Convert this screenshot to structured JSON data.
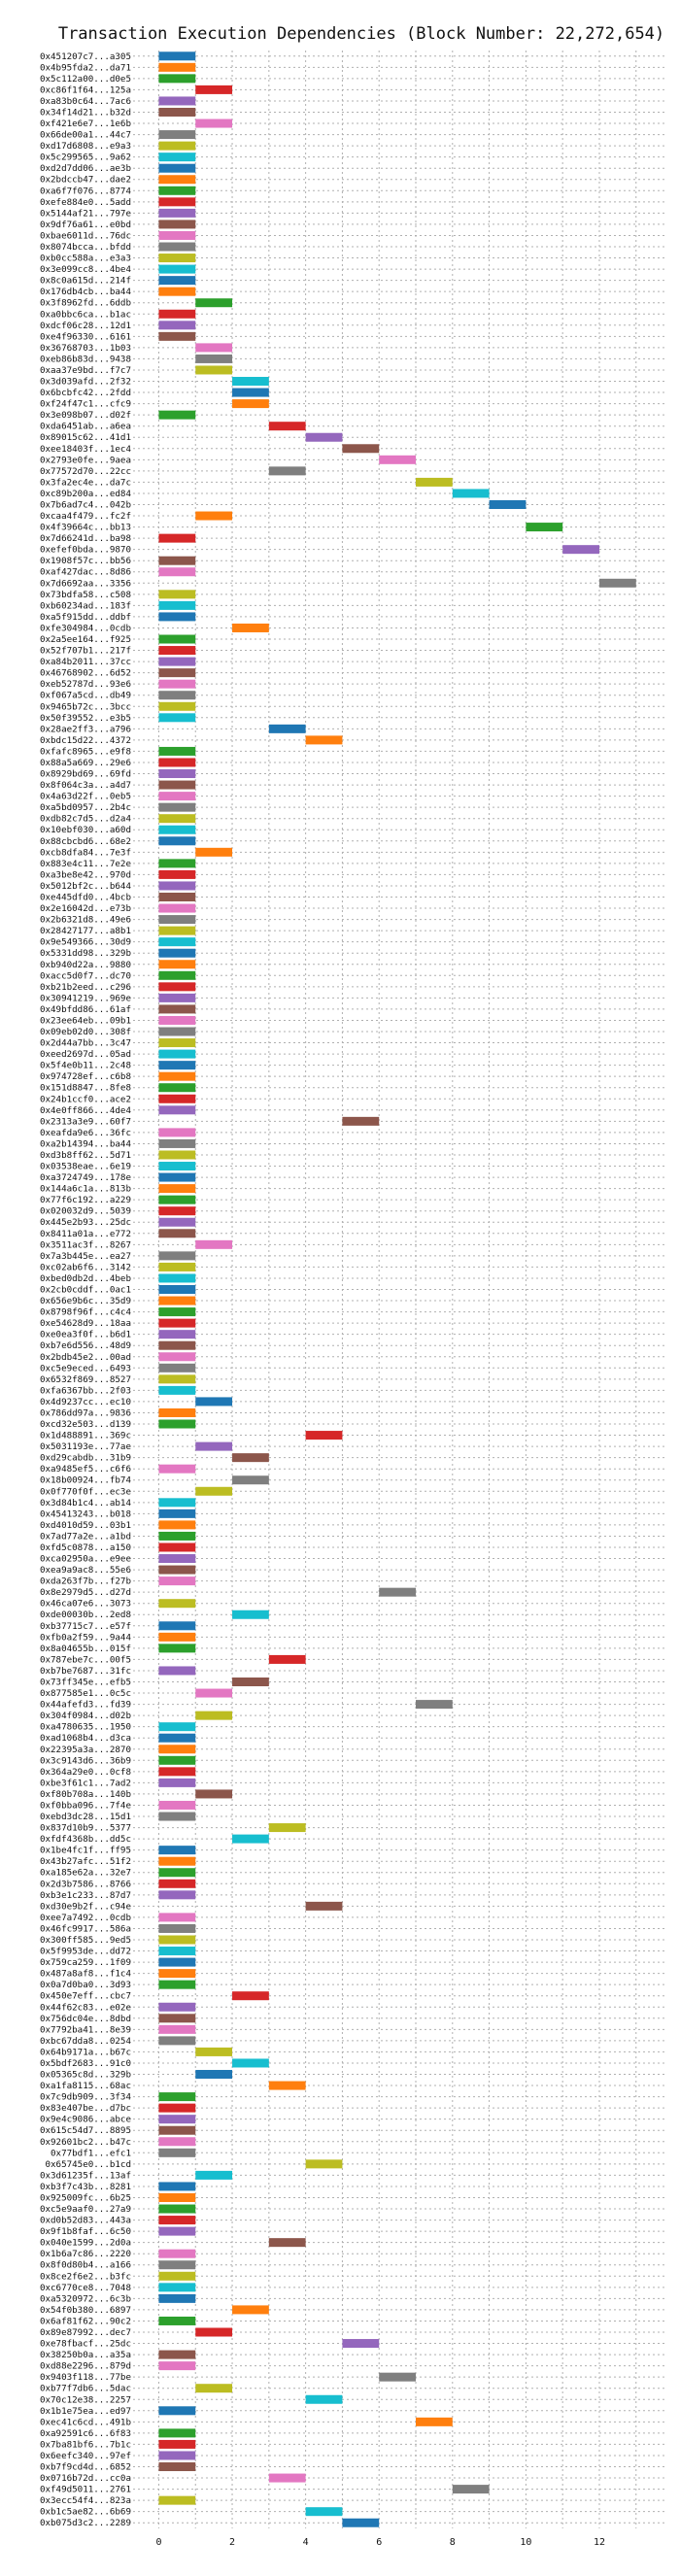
{
  "chart_data": {
    "type": "bar",
    "orientation": "horizontal",
    "title": "Transaction Execution Dependencies (Block Number: 22,272,654)",
    "xlabel": "",
    "ylabel": "",
    "xlim": [
      -0.7,
      13.8
    ],
    "xticks": [
      0,
      2,
      4,
      6,
      8,
      10,
      12
    ],
    "grid": true,
    "bar_span": 1,
    "palette": [
      "#1f77b4",
      "#ff7f0e",
      "#2ca02c",
      "#d62728",
      "#9467bd",
      "#8c564b",
      "#e377c2",
      "#7f7f7f",
      "#bcbd22",
      "#17becf"
    ],
    "transactions": [
      {
        "label": "0x451207c7...a305",
        "start": 0
      },
      {
        "label": "0x4b95fda2...da71",
        "start": 0
      },
      {
        "label": "0x5c112a00...d0e5",
        "start": 0
      },
      {
        "label": "0xc86f1f64...125a",
        "start": 1
      },
      {
        "label": "0xa83b0c64...7ac6",
        "start": 0
      },
      {
        "label": "0x34f14d21...b32d",
        "start": 0
      },
      {
        "label": "0xf421e6e7...1e6b",
        "start": 1
      },
      {
        "label": "0x66de00a1...44c7",
        "start": 0
      },
      {
        "label": "0xd17d6808...e9a3",
        "start": 0
      },
      {
        "label": "0x5c299565...9a62",
        "start": 0
      },
      {
        "label": "0xd2d7dd06...ae3b",
        "start": 0
      },
      {
        "label": "0x2bdccb47...dae2",
        "start": 0
      },
      {
        "label": "0xa6f7f076...8774",
        "start": 0
      },
      {
        "label": "0xefe884e0...5add",
        "start": 0
      },
      {
        "label": "0x5144af21...797e",
        "start": 0
      },
      {
        "label": "0x9df76a61...e0bd",
        "start": 0
      },
      {
        "label": "0xbae6011d...76dc",
        "start": 0
      },
      {
        "label": "0x8074bcca...bfdd",
        "start": 0
      },
      {
        "label": "0xb0cc588a...e3a3",
        "start": 0
      },
      {
        "label": "0x3e099cc8...4be4",
        "start": 0
      },
      {
        "label": "0x8c0a615d...214f",
        "start": 0
      },
      {
        "label": "0x176db4cb...ba44",
        "start": 0
      },
      {
        "label": "0x3f8962fd...6ddb",
        "start": 1
      },
      {
        "label": "0xa0bbc6ca...b1ac",
        "start": 0
      },
      {
        "label": "0xdcf06c28...12d1",
        "start": 0
      },
      {
        "label": "0xe4f96330...6161",
        "start": 0
      },
      {
        "label": "0x36768703...1b03",
        "start": 1
      },
      {
        "label": "0xeb86b83d...9438",
        "start": 1
      },
      {
        "label": "0xaa37e9bd...f7c7",
        "start": 1
      },
      {
        "label": "0x3d039afd...2f32",
        "start": 2
      },
      {
        "label": "0x6bcbfc42...2fdd",
        "start": 2
      },
      {
        "label": "0xf24f47c1...cfc9",
        "start": 2
      },
      {
        "label": "0x3e098b07...d02f",
        "start": 0
      },
      {
        "label": "0xda6451ab...a6ea",
        "start": 3
      },
      {
        "label": "0x89015c62...41d1",
        "start": 4
      },
      {
        "label": "0xee18403f...1ec4",
        "start": 5
      },
      {
        "label": "0x2793e0fe...9aea",
        "start": 6
      },
      {
        "label": "0x77572d70...22cc",
        "start": 3
      },
      {
        "label": "0x3fa2ec4e...da7c",
        "start": 7
      },
      {
        "label": "0xc89b200a...ed84",
        "start": 8
      },
      {
        "label": "0x7b6ad7c4...042b",
        "start": 9
      },
      {
        "label": "0xcaa4f479...fc2f",
        "start": 1
      },
      {
        "label": "0x4f39664c...bb13",
        "start": 10
      },
      {
        "label": "0x7d66241d...ba98",
        "start": 0
      },
      {
        "label": "0xefef0bda...9870",
        "start": 11
      },
      {
        "label": "0x1908f57c...bb56",
        "start": 0
      },
      {
        "label": "0xaf427dac...8d86",
        "start": 0
      },
      {
        "label": "0x7d6692aa...3356",
        "start": 12
      },
      {
        "label": "0x73bdfa58...c508",
        "start": 0
      },
      {
        "label": "0xb60234ad...183f",
        "start": 0
      },
      {
        "label": "0xa5f915dd...ddbf",
        "start": 0
      },
      {
        "label": "0xfe304984...0cdb",
        "start": 2
      },
      {
        "label": "0x2a5ee164...f925",
        "start": 0
      },
      {
        "label": "0x52f707b1...217f",
        "start": 0
      },
      {
        "label": "0xa84b2011...37cc",
        "start": 0
      },
      {
        "label": "0x46768902...6d52",
        "start": 0
      },
      {
        "label": "0xeb52787d...93e6",
        "start": 0
      },
      {
        "label": "0xf067a5cd...db49",
        "start": 0
      },
      {
        "label": "0x9465b72c...3bcc",
        "start": 0
      },
      {
        "label": "0x50f39552...e3b5",
        "start": 0
      },
      {
        "label": "0x28ae2ff3...a796",
        "start": 3
      },
      {
        "label": "0xbdc15d22...4372",
        "start": 4
      },
      {
        "label": "0xfafc8965...e9f8",
        "start": 0
      },
      {
        "label": "0x88a5a669...29e6",
        "start": 0
      },
      {
        "label": "0x8929bd69...69fd",
        "start": 0
      },
      {
        "label": "0x8f064c3a...a4d7",
        "start": 0
      },
      {
        "label": "0x4a63d22f...0eb5",
        "start": 0
      },
      {
        "label": "0xa5bd0957...2b4c",
        "start": 0
      },
      {
        "label": "0xdb82c7d5...d2a4",
        "start": 0
      },
      {
        "label": "0x10ebf030...a60d",
        "start": 0
      },
      {
        "label": "0x88cbcbd6...68e2",
        "start": 0
      },
      {
        "label": "0xcb8dfa84...7e3f",
        "start": 1
      },
      {
        "label": "0x883e4c11...7e2e",
        "start": 0
      },
      {
        "label": "0xa3be8e42...970d",
        "start": 0
      },
      {
        "label": "0x5012bf2c...b644",
        "start": 0
      },
      {
        "label": "0xe445dfd0...4bcb",
        "start": 0
      },
      {
        "label": "0x2e16042d...e73b",
        "start": 0
      },
      {
        "label": "0x2b6321d8...49e6",
        "start": 0
      },
      {
        "label": "0x28427177...a8b1",
        "start": 0
      },
      {
        "label": "0x9e549366...30d9",
        "start": 0
      },
      {
        "label": "0x5331dd98...329b",
        "start": 0
      },
      {
        "label": "0xb940d22a...9880",
        "start": 0
      },
      {
        "label": "0xacc5d0f7...dc70",
        "start": 0
      },
      {
        "label": "0xb21b2eed...c296",
        "start": 0
      },
      {
        "label": "0x30941219...969e",
        "start": 0
      },
      {
        "label": "0x49bfdd86...61af",
        "start": 0
      },
      {
        "label": "0x23ee64eb...09b1",
        "start": 0
      },
      {
        "label": "0x09eb02d0...308f",
        "start": 0
      },
      {
        "label": "0x2d44a7bb...3c47",
        "start": 0
      },
      {
        "label": "0xeed2697d...05ad",
        "start": 0
      },
      {
        "label": "0x5f4e0b11...2c48",
        "start": 0
      },
      {
        "label": "0x974728ef...c6b8",
        "start": 0
      },
      {
        "label": "0x151d8847...8fe8",
        "start": 0
      },
      {
        "label": "0x24b1ccf0...ace2",
        "start": 0
      },
      {
        "label": "0x4e0ff866...4de4",
        "start": 0
      },
      {
        "label": "0x2313a3e9...60f7",
        "start": 5
      },
      {
        "label": "0xeafda9e6...36fc",
        "start": 0
      },
      {
        "label": "0xa2b14394...ba44",
        "start": 0
      },
      {
        "label": "0xd3b8ff62...5d71",
        "start": 0
      },
      {
        "label": "0x03538eae...6e19",
        "start": 0
      },
      {
        "label": "0xa3724749...178e",
        "start": 0
      },
      {
        "label": "0x144a6c1a...813b",
        "start": 0
      },
      {
        "label": "0x77f6c192...a229",
        "start": 0
      },
      {
        "label": "0x020032d9...5039",
        "start": 0
      },
      {
        "label": "0x445e2b93...25dc",
        "start": 0
      },
      {
        "label": "0x8411a01a...e772",
        "start": 0
      },
      {
        "label": "0x3511ac3f...8267",
        "start": 1
      },
      {
        "label": "0x7a3b445e...ea27",
        "start": 0
      },
      {
        "label": "0xc02ab6f6...3142",
        "start": 0
      },
      {
        "label": "0xbed0db2d...4beb",
        "start": 0
      },
      {
        "label": "0x2cb0cddf...0ac1",
        "start": 0
      },
      {
        "label": "0x656e9b6c...35d9",
        "start": 0
      },
      {
        "label": "0x8798f96f...c4c4",
        "start": 0
      },
      {
        "label": "0xe54628d9...18aa",
        "start": 0
      },
      {
        "label": "0xe0ea3f0f...b6d1",
        "start": 0
      },
      {
        "label": "0xb7e6d556...48d9",
        "start": 0
      },
      {
        "label": "0x2bdb45e2...00ad",
        "start": 0
      },
      {
        "label": "0xc5e9eced...6493",
        "start": 0
      },
      {
        "label": "0x6532f869...8527",
        "start": 0
      },
      {
        "label": "0xfa6367bb...2f03",
        "start": 0
      },
      {
        "label": "0x4d9237cc...ec10",
        "start": 1
      },
      {
        "label": "0x786dd97a...9836",
        "start": 0
      },
      {
        "label": "0xcd32e503...d139",
        "start": 0
      },
      {
        "label": "0x1d488891...369c",
        "start": 4
      },
      {
        "label": "0x5031193e...77ae",
        "start": 1
      },
      {
        "label": "0xd29cabdb...31b9",
        "start": 2
      },
      {
        "label": "0xa9485ef5...c6f6",
        "start": 0
      },
      {
        "label": "0x18b00924...fb74",
        "start": 2
      },
      {
        "label": "0x0f770f0f...ec3e",
        "start": 1
      },
      {
        "label": "0x3d84b1c4...ab14",
        "start": 0
      },
      {
        "label": "0x45413243...b018",
        "start": 0
      },
      {
        "label": "0xd4010d59...03b1",
        "start": 0
      },
      {
        "label": "0x7ad77a2e...a1bd",
        "start": 0
      },
      {
        "label": "0xfd5c0878...a150",
        "start": 0
      },
      {
        "label": "0xca02950a...e9ee",
        "start": 0
      },
      {
        "label": "0xea9a9ac8...55e6",
        "start": 0
      },
      {
        "label": "0xda263f7b...f27b",
        "start": 0
      },
      {
        "label": "0x8e2979d5...d27d",
        "start": 6
      },
      {
        "label": "0x46ca07e6...3073",
        "start": 0
      },
      {
        "label": "0xde00030b...2ed8",
        "start": 2
      },
      {
        "label": "0xb37715c7...e57f",
        "start": 0
      },
      {
        "label": "0xfb0a2f59...9a44",
        "start": 0
      },
      {
        "label": "0x8a04655b...015f",
        "start": 0
      },
      {
        "label": "0x787ebe7c...00f5",
        "start": 3
      },
      {
        "label": "0xb7be7687...31fc",
        "start": 0
      },
      {
        "label": "0x73ff345e...efb5",
        "start": 2
      },
      {
        "label": "0x877585e1...0c5c",
        "start": 1
      },
      {
        "label": "0x44afefd3...fd39",
        "start": 7
      },
      {
        "label": "0x304f0984...d02b",
        "start": 1
      },
      {
        "label": "0xa4780635...1950",
        "start": 0
      },
      {
        "label": "0xad1068b4...d3ca",
        "start": 0
      },
      {
        "label": "0x22395a3a...2870",
        "start": 0
      },
      {
        "label": "0x3c9143d6...36b9",
        "start": 0
      },
      {
        "label": "0x364a29e0...0cf8",
        "start": 0
      },
      {
        "label": "0xbe3f61c1...7ad2",
        "start": 0
      },
      {
        "label": "0xf80b708a...140b",
        "start": 1
      },
      {
        "label": "0xf0bba096...7f4e",
        "start": 0
      },
      {
        "label": "0xebd3dc28...15d1",
        "start": 0
      },
      {
        "label": "0x837d10b9...5377",
        "start": 3
      },
      {
        "label": "0xfdf4368b...dd5c",
        "start": 2
      },
      {
        "label": "0x1be4fc1f...ff95",
        "start": 0
      },
      {
        "label": "0x43b27afc...51f2",
        "start": 0
      },
      {
        "label": "0xa185e62a...32e7",
        "start": 0
      },
      {
        "label": "0x2d3b7586...8766",
        "start": 0
      },
      {
        "label": "0xb3e1c233...87d7",
        "start": 0
      },
      {
        "label": "0xd30e9b2f...c94e",
        "start": 4
      },
      {
        "label": "0xee7a7492...0cdb",
        "start": 0
      },
      {
        "label": "0x46fc9917...586a",
        "start": 0
      },
      {
        "label": "0x300ff585...9ed5",
        "start": 0
      },
      {
        "label": "0x5f9953de...dd72",
        "start": 0
      },
      {
        "label": "0x759ca259...1f09",
        "start": 0
      },
      {
        "label": "0x487a8af8...f1c4",
        "start": 0
      },
      {
        "label": "0x0a7d0ba0...3d93",
        "start": 0
      },
      {
        "label": "0x450e7eff...cbc7",
        "start": 2
      },
      {
        "label": "0x44f62c83...e02e",
        "start": 0
      },
      {
        "label": "0x756dc04e...8dbd",
        "start": 0
      },
      {
        "label": "0x7792ba41...8e39",
        "start": 0
      },
      {
        "label": "0xbc67dda8...0254",
        "start": 0
      },
      {
        "label": "0x64b9171a...b67c",
        "start": 1
      },
      {
        "label": "0x5bdf2683...91c0",
        "start": 2
      },
      {
        "label": "0x05365c8d...329b",
        "start": 1
      },
      {
        "label": "0xa1fa8115...68ac",
        "start": 3
      },
      {
        "label": "0x7c9db909...3f34",
        "start": 0
      },
      {
        "label": "0x83e407be...d7bc",
        "start": 0
      },
      {
        "label": "0x9e4c9086...abce",
        "start": 0
      },
      {
        "label": "0x615c54d7...8895",
        "start": 0
      },
      {
        "label": "0x92601bc2...b47c",
        "start": 0
      },
      {
        "label": "0x77bdf1...efc1",
        "start": 0
      },
      {
        "label": "0x65745e0...b1cd",
        "start": 4
      },
      {
        "label": "0x3d61235f...13af",
        "start": 1
      },
      {
        "label": "0xb3f7c43b...8281",
        "start": 0
      },
      {
        "label": "0x925009fc...6b25",
        "start": 0
      },
      {
        "label": "0xc5e9aaf0...27a9",
        "start": 0
      },
      {
        "label": "0xd0b52d83...443a",
        "start": 0
      },
      {
        "label": "0x9f1b8faf...6c50",
        "start": 0
      },
      {
        "label": "0x040e1599...2d0a",
        "start": 3
      },
      {
        "label": "0x1b6a7c86...2220",
        "start": 0
      },
      {
        "label": "0x8f0d80b4...a166",
        "start": 0
      },
      {
        "label": "0x8ce2f6e2...b3fc",
        "start": 0
      },
      {
        "label": "0xc6770ce8...7048",
        "start": 0
      },
      {
        "label": "0xa5320972...6c3b",
        "start": 0
      },
      {
        "label": "0x54f0b380...6897",
        "start": 2
      },
      {
        "label": "0x6af81f62...90c2",
        "start": 0
      },
      {
        "label": "0x89e87992...dec7",
        "start": 1
      },
      {
        "label": "0xe78fbacf...25dc",
        "start": 5
      },
      {
        "label": "0x38250b0a...a35a",
        "start": 0
      },
      {
        "label": "0xd88e2296...879d",
        "start": 0
      },
      {
        "label": "0x9403f118...77be",
        "start": 6
      },
      {
        "label": "0xb77f7db6...5dac",
        "start": 1
      },
      {
        "label": "0x70c12e38...2257",
        "start": 4
      },
      {
        "label": "0x1b1e75ea...ed97",
        "start": 0
      },
      {
        "label": "0xec41c6cd...491b",
        "start": 7
      },
      {
        "label": "0xa92591c6...6f83",
        "start": 0
      },
      {
        "label": "0x7ba81bf6...7b1c",
        "start": 0
      },
      {
        "label": "0x6eefc340...97ef",
        "start": 0
      },
      {
        "label": "0xb7f9cd4d...6852",
        "start": 0
      },
      {
        "label": "0x0716b72d...cc0a",
        "start": 3
      },
      {
        "label": "0xf49d5011...2761",
        "start": 8
      },
      {
        "label": "0x3ecc54f4...823a",
        "start": 0
      },
      {
        "label": "0xb1c5ae82...6b69",
        "start": 4
      },
      {
        "label": "0xb075d3c2...2289",
        "start": 5
      }
    ]
  }
}
